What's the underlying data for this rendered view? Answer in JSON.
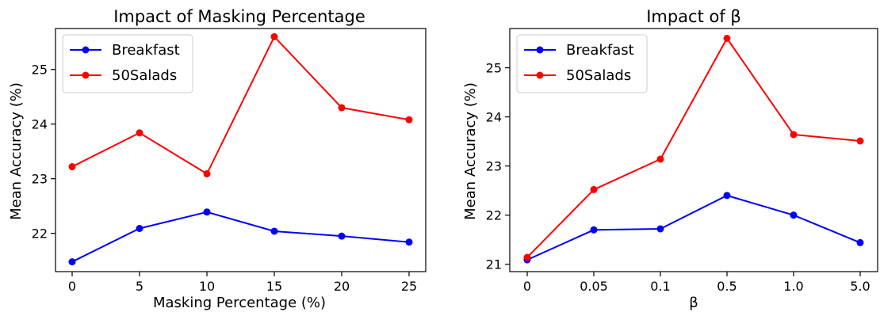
{
  "chart_data": [
    {
      "type": "line",
      "title": "Impact of Masking Percentage",
      "xlabel": "Masking Percentage (%)",
      "ylabel": "Mean Accuracy (%)",
      "categories": [
        "0",
        "5",
        "10",
        "15",
        "20",
        "25"
      ],
      "yticks": [
        "22",
        "23",
        "24",
        "25"
      ],
      "ylim": [
        21.3,
        25.75
      ],
      "grid": false,
      "legend_position": "top-left",
      "series": [
        {
          "name": "Breakfast",
          "color": "#0000ff",
          "values": [
            21.48,
            22.09,
            22.39,
            22.04,
            21.95,
            21.84
          ]
        },
        {
          "name": "50Salads",
          "color": "#ff0000",
          "values": [
            23.22,
            23.84,
            23.09,
            25.6,
            24.3,
            24.08
          ]
        }
      ]
    },
    {
      "type": "line",
      "title": "Impact of β",
      "xlabel": "β",
      "ylabel": "Mean Accuracy (%)",
      "categories": [
        "0",
        "0.05",
        "0.1",
        "0.5",
        "1.0",
        "5.0"
      ],
      "yticks": [
        "21",
        "22",
        "23",
        "24",
        "25"
      ],
      "ylim": [
        20.85,
        25.8
      ],
      "grid": false,
      "legend_position": "top-left",
      "series": [
        {
          "name": "Breakfast",
          "color": "#0000ff",
          "values": [
            21.09,
            21.7,
            21.72,
            22.4,
            22.0,
            21.44
          ]
        },
        {
          "name": "50Salads",
          "color": "#ff0000",
          "values": [
            21.14,
            22.52,
            23.14,
            25.6,
            23.64,
            23.51
          ]
        }
      ]
    }
  ]
}
